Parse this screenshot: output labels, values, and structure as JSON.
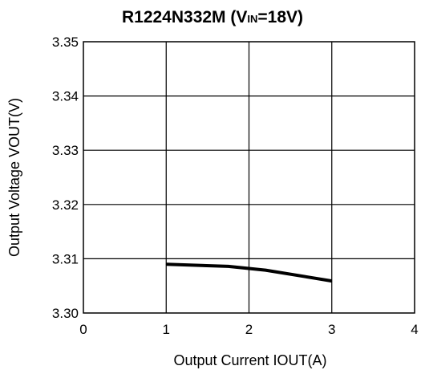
{
  "chart_data": {
    "type": "line",
    "title": {
      "part1": "R1224N332M (V",
      "sub": "IN",
      "part2": "=18V)"
    },
    "xlabel": {
      "part1": "Output Current I",
      "sub": "OUT",
      "part2": "(A)"
    },
    "ylabel": {
      "part1": "Output Voltage V",
      "sub": "OUT",
      "part2": "(V)"
    },
    "xlim": [
      0,
      4
    ],
    "ylim": [
      3.3,
      3.35
    ],
    "xticks": [
      0,
      1,
      2,
      3,
      4
    ],
    "xtick_labels": [
      "0",
      "1",
      "2",
      "3",
      "4"
    ],
    "yticks": [
      3.3,
      3.31,
      3.32,
      3.33,
      3.34,
      3.35
    ],
    "ytick_labels": [
      "3.30",
      "3.31",
      "3.32",
      "3.33",
      "3.34",
      "3.35"
    ],
    "grid": true,
    "series": [
      {
        "x": [
          1.0,
          1.75,
          2.2,
          3.0
        ],
        "y": [
          3.309,
          3.3086,
          3.3079,
          3.3059
        ]
      }
    ],
    "line_color": "#000000",
    "grid_color": "#000000"
  }
}
